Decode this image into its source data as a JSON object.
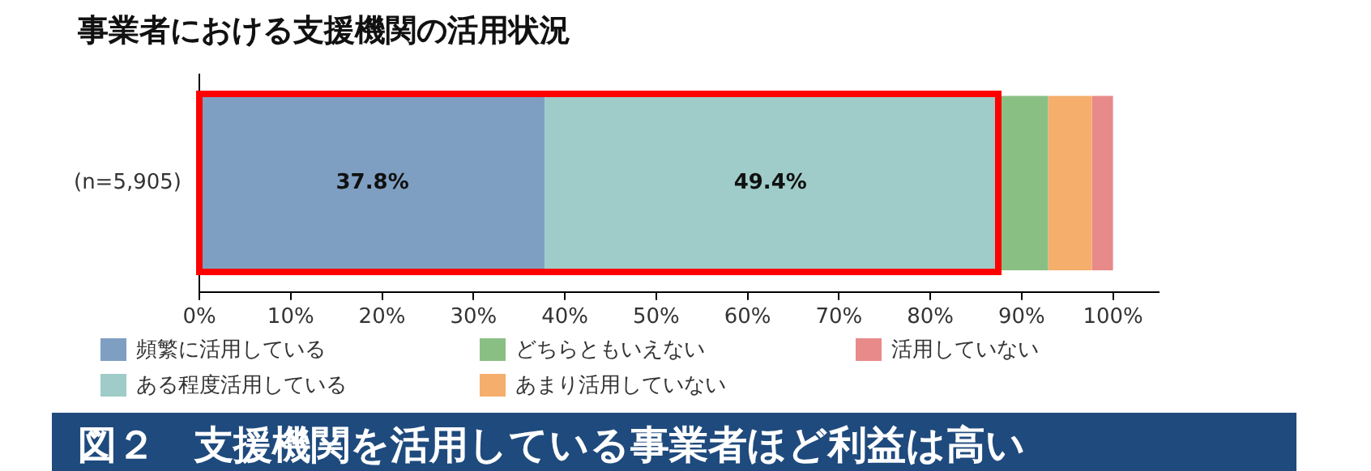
{
  "chart_data": {
    "type": "bar",
    "orientation": "horizontal",
    "stacked": true,
    "title": "事業者における支援機関の活用状況",
    "categories": [
      "(n=5,905)"
    ],
    "series": [
      {
        "name": "頻繁に活用している",
        "color": "#7f9fc2",
        "values": [
          37.8
        ],
        "value_labels": [
          "37.8%"
        ]
      },
      {
        "name": "ある程度活用している",
        "color": "#9fccc8",
        "values": [
          49.4
        ],
        "value_labels": [
          "49.4%"
        ]
      },
      {
        "name": "どちらともいえない",
        "color": "#8abf84",
        "values": [
          5.7
        ]
      },
      {
        "name": "あまり活用していない",
        "color": "#f5ae6b",
        "values": [
          4.8
        ]
      },
      {
        "name": "活用していない",
        "color": "#e88a8a",
        "values": [
          2.3
        ]
      }
    ],
    "xlim": [
      0,
      105
    ],
    "xticks": [
      {
        "value": 0,
        "label": "0%"
      },
      {
        "value": 10,
        "label": "10%"
      },
      {
        "value": 20,
        "label": "20%"
      },
      {
        "value": 30,
        "label": "30%"
      },
      {
        "value": 40,
        "label": "40%"
      },
      {
        "value": 50,
        "label": "50%"
      },
      {
        "value": 60,
        "label": "60%"
      },
      {
        "value": 70,
        "label": "70%"
      },
      {
        "value": 80,
        "label": "80%"
      },
      {
        "value": 90,
        "label": "90%"
      },
      {
        "value": 100,
        "label": "100%"
      }
    ],
    "grid": false,
    "legend": "bottom",
    "annotations": [
      "図２　支援機関を活用している事業者ほど利益は高い"
    ]
  }
}
